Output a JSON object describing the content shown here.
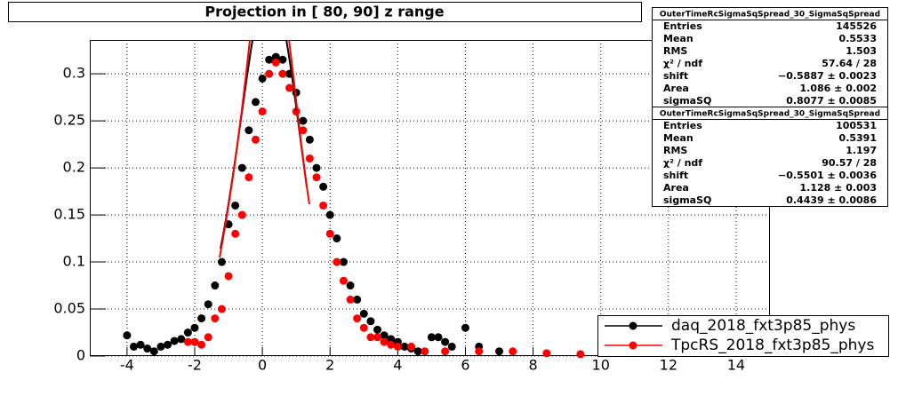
{
  "chart_data": {
    "type": "scatter",
    "title": "Projection in [  80,  90] z range",
    "xlim": [
      -5.1,
      15
    ],
    "ylim": [
      0,
      0.336
    ],
    "xticks": [
      -4,
      -2,
      0,
      2,
      4,
      6,
      8,
      10,
      12,
      14
    ],
    "yticks": [
      0,
      0.05,
      0.1,
      0.15,
      0.2,
      0.25,
      0.3
    ],
    "grid": true,
    "legend_position": "bottom-right",
    "series": [
      {
        "name": "daq_2018_fxt3p85_phys",
        "color": "#000000",
        "x": [
          -4.0,
          -3.8,
          -3.6,
          -3.4,
          -3.2,
          -3.0,
          -2.8,
          -2.6,
          -2.4,
          -2.2,
          -2.0,
          -1.8,
          -1.6,
          -1.4,
          -1.2,
          -1.0,
          -0.8,
          -0.6,
          -0.4,
          -0.2,
          0.0,
          0.2,
          0.4,
          0.6,
          0.8,
          1.0,
          1.2,
          1.4,
          1.6,
          1.8,
          2.0,
          2.2,
          2.4,
          2.6,
          2.8,
          3.0,
          3.2,
          3.4,
          3.6,
          3.8,
          4.0,
          4.2,
          4.4,
          4.6,
          5.0,
          5.2,
          5.4,
          5.6,
          6.0,
          6.4,
          7.0
        ],
        "values": [
          0.022,
          0.01,
          0.012,
          0.008,
          0.005,
          0.01,
          0.012,
          0.016,
          0.018,
          0.025,
          0.03,
          0.04,
          0.055,
          0.075,
          0.1,
          0.14,
          0.16,
          0.2,
          0.24,
          0.27,
          0.295,
          0.315,
          0.318,
          0.315,
          0.3,
          0.28,
          0.25,
          0.23,
          0.2,
          0.18,
          0.15,
          0.125,
          0.1,
          0.075,
          0.06,
          0.045,
          0.037,
          0.028,
          0.022,
          0.018,
          0.015,
          0.01,
          0.008,
          0.005,
          0.02,
          0.02,
          0.015,
          0.01,
          0.03,
          0.01,
          0.005
        ]
      },
      {
        "name": "TpcRS_2018_fxt3p85_phys",
        "color": "#ff0000",
        "x": [
          -2.2,
          -2.0,
          -1.8,
          -1.6,
          -1.4,
          -1.2,
          -1.0,
          -0.8,
          -0.6,
          -0.4,
          -0.2,
          0.0,
          0.2,
          0.4,
          0.6,
          0.8,
          1.0,
          1.2,
          1.4,
          1.6,
          1.8,
          2.0,
          2.2,
          2.4,
          2.6,
          2.8,
          3.0,
          3.2,
          3.4,
          3.6,
          3.8,
          4.0,
          4.4,
          4.8,
          5.4,
          6.4,
          7.4,
          8.4,
          9.4
        ],
        "values": [
          0.015,
          0.015,
          0.012,
          0.02,
          0.04,
          0.05,
          0.085,
          0.13,
          0.15,
          0.19,
          0.23,
          0.26,
          0.3,
          0.312,
          0.3,
          0.285,
          0.26,
          0.24,
          0.21,
          0.19,
          0.16,
          0.13,
          0.1,
          0.08,
          0.06,
          0.04,
          0.03,
          0.02,
          0.02,
          0.015,
          0.012,
          0.01,
          0.01,
          0.005,
          0.005,
          0.005,
          0.005,
          0.003,
          0.002
        ]
      }
    ]
  },
  "stat_boxes": [
    {
      "title": "OuterTimeRcSigmaSqSpread_30_SigmaSqSpread",
      "rows": [
        [
          "Entries",
          "145526"
        ],
        [
          "Mean",
          "0.5533"
        ],
        [
          "RMS",
          "1.503"
        ],
        [
          "χ² / ndf",
          "57.64 / 28"
        ],
        [
          "shift",
          "−0.5887 ± 0.0023"
        ],
        [
          "Area",
          "1.086 ± 0.002"
        ],
        [
          "sigmaSQ",
          "0.8077 ± 0.0085"
        ]
      ]
    },
    {
      "title": "OuterTimeRcSigmaSqSpread_30_SigmaSqSpread",
      "rows": [
        [
          "Entries",
          "100531"
        ],
        [
          "Mean",
          "0.5391"
        ],
        [
          "RMS",
          "1.197"
        ],
        [
          "χ² / ndf",
          "90.57 / 28"
        ],
        [
          "shift",
          "−0.5501 ± 0.0036"
        ],
        [
          "Area",
          "1.128 ± 0.003"
        ],
        [
          "sigmaSQ",
          "0.4439 ± 0.0086"
        ]
      ]
    }
  ]
}
